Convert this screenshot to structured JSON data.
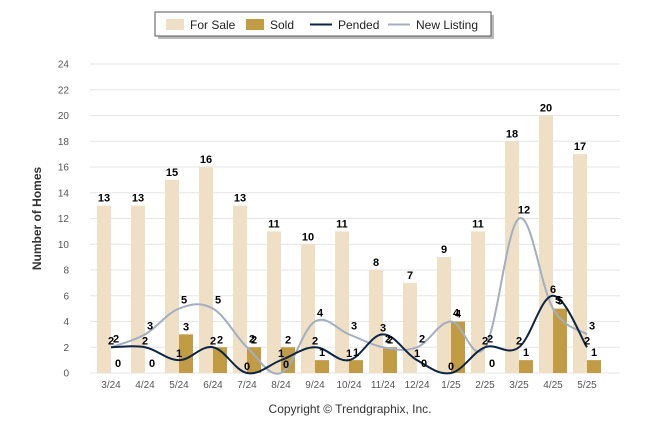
{
  "chart_data": {
    "type": "bar",
    "ylabel": "Number of Homes",
    "ylim": [
      0,
      24
    ],
    "yticks": [
      0,
      2,
      4,
      6,
      8,
      10,
      12,
      14,
      16,
      18,
      20,
      22,
      24
    ],
    "grid": true,
    "legend_position": "top-center",
    "categories": [
      "3/24",
      "4/24",
      "5/24",
      "6/24",
      "7/24",
      "8/24",
      "9/24",
      "10/24",
      "11/24",
      "12/24",
      "1/25",
      "2/25",
      "3/25",
      "4/25",
      "5/25"
    ],
    "series": [
      {
        "name": "For Sale",
        "kind": "bar",
        "color": "#efdfc4",
        "values": [
          13,
          13,
          15,
          16,
          13,
          11,
          10,
          11,
          8,
          7,
          9,
          11,
          18,
          20,
          17
        ]
      },
      {
        "name": "Sold",
        "kind": "bar",
        "color": "#c29b45",
        "values": [
          0,
          0,
          3,
          2,
          2,
          2,
          1,
          1,
          2,
          0,
          4,
          0,
          1,
          5,
          1
        ]
      },
      {
        "name": "Pended",
        "kind": "line",
        "color": "#0d2545",
        "values": [
          2,
          2,
          1,
          2,
          0,
          1,
          2,
          1,
          3,
          1,
          0,
          2,
          2,
          6,
          2
        ]
      },
      {
        "name": "New Listing",
        "kind": "line",
        "color": "#a3aec1",
        "values": [
          2,
          3,
          5,
          5,
          2,
          0,
          4,
          3,
          2,
          2,
          4,
          2,
          12,
          5,
          3
        ]
      }
    ]
  },
  "footer": {
    "copyright": "Copyright © Trendgraphix, Inc."
  }
}
